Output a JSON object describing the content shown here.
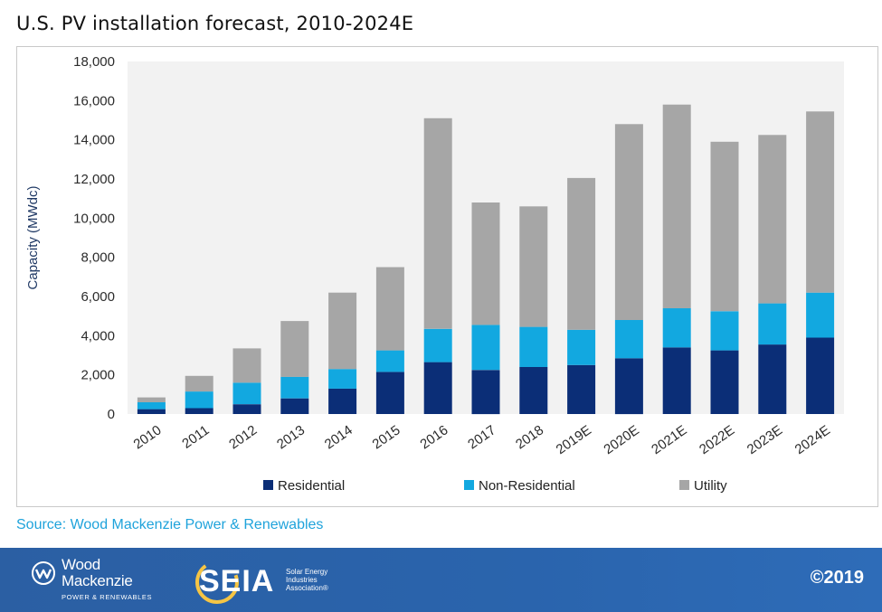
{
  "title": "U.S. PV installation forecast, 2010-2024E",
  "source": "Source: Wood Mackenzie Power & Renewables",
  "footer": {
    "wm_line1": "Wood",
    "wm_line2": "Mackenzie",
    "wm_sub": "POWER & RENEWABLES",
    "seia_word": "SEIA",
    "seia_desc": "Solar Energy Industries Association®",
    "copyright": "©2019"
  },
  "colors": {
    "residential": "#0b2e77",
    "non_residential": "#12a8e0",
    "utility": "#a6a6a6",
    "plot_bg": "#f2f2f2",
    "footer_bg": "#2a64ad"
  },
  "chart_data": {
    "type": "bar",
    "stacked": true,
    "title": "U.S. PV installation forecast, 2010-2024E",
    "xlabel": "",
    "ylabel": "Capacity (MWdc)",
    "ylim": [
      0,
      18000
    ],
    "yticks": [
      0,
      2000,
      4000,
      6000,
      8000,
      10000,
      12000,
      14000,
      16000,
      18000
    ],
    "ytick_labels": [
      "0",
      "2,000",
      "4,000",
      "6,000",
      "8,000",
      "10,000",
      "12,000",
      "14,000",
      "16,000",
      "18,000"
    ],
    "grid": false,
    "legend_position": "bottom",
    "categories": [
      "2010",
      "2011",
      "2012",
      "2013",
      "2014",
      "2015",
      "2016",
      "2017",
      "2018",
      "2019E",
      "2020E",
      "2021E",
      "2022E",
      "2023E",
      "2024E"
    ],
    "series": [
      {
        "name": "Residential",
        "values": [
          250,
          300,
          500,
          800,
          1300,
          2150,
          2650,
          2250,
          2400,
          2500,
          2850,
          3400,
          3250,
          3550,
          3900
        ]
      },
      {
        "name": "Non-Residential",
        "values": [
          350,
          850,
          1100,
          1100,
          1000,
          1100,
          1700,
          2300,
          2050,
          1800,
          1950,
          2000,
          2000,
          2100,
          2300
        ]
      },
      {
        "name": "Utility",
        "values": [
          250,
          800,
          1750,
          2850,
          3900,
          4250,
          10750,
          6250,
          6150,
          7750,
          10000,
          10400,
          8650,
          8600,
          9250
        ]
      }
    ]
  }
}
